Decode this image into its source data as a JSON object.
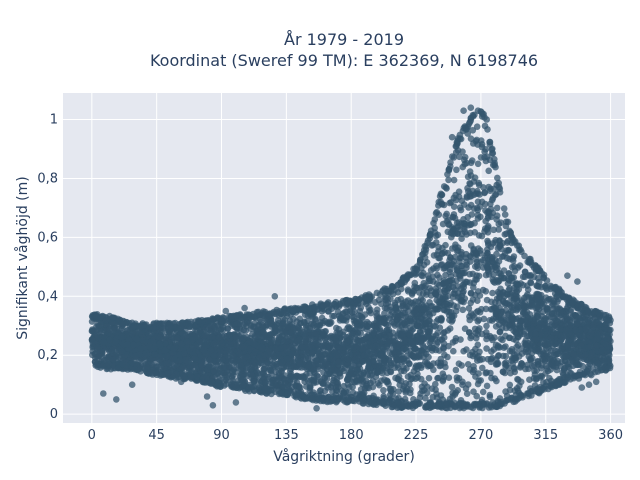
{
  "chart_data": {
    "type": "scatter",
    "title": [
      "År 1979 - 2019",
      "Koordinat (Sweref 99 TM): E 362369, N 6198746"
    ],
    "xlabel": "Vågriktning (grader)",
    "ylabel": "Signifikant våghöjd (m)",
    "xlim": [
      -20,
      370
    ],
    "ylim": [
      -0.03,
      1.09
    ],
    "xticks": [
      0,
      45,
      90,
      135,
      180,
      225,
      270,
      315,
      360
    ],
    "xtick_labels": [
      "0",
      "45",
      "90",
      "135",
      "180",
      "225",
      "270",
      "315",
      "360"
    ],
    "yticks": [
      0,
      0.2,
      0.4,
      0.6,
      0.8,
      1
    ],
    "ytick_labels": [
      "0",
      "0,2",
      "0,4",
      "0,6",
      "0,8",
      "1"
    ],
    "grid": true,
    "marker_color": "#34566e",
    "background_color": "#e5e8f0",
    "series_envelope": {
      "x": [
        0,
        15,
        30,
        45,
        60,
        75,
        90,
        105,
        120,
        135,
        150,
        165,
        180,
        195,
        210,
        225,
        235,
        245,
        255,
        262,
        268,
        272,
        278,
        285,
        292,
        300,
        315,
        330,
        345,
        360
      ],
      "y_low": [
        0.16,
        0.15,
        0.15,
        0.13,
        0.12,
        0.11,
        0.09,
        0.08,
        0.07,
        0.06,
        0.05,
        0.04,
        0.04,
        0.03,
        0.02,
        0.02,
        0.02,
        0.02,
        0.02,
        0.02,
        0.02,
        0.02,
        0.02,
        0.03,
        0.04,
        0.05,
        0.08,
        0.11,
        0.13,
        0.15
      ],
      "y_high": [
        0.35,
        0.33,
        0.31,
        0.31,
        0.31,
        0.32,
        0.33,
        0.34,
        0.35,
        0.36,
        0.37,
        0.38,
        0.39,
        0.41,
        0.44,
        0.5,
        0.62,
        0.8,
        0.95,
        1.0,
        1.04,
        1.02,
        0.9,
        0.72,
        0.6,
        0.55,
        0.47,
        0.4,
        0.36,
        0.33
      ]
    },
    "outliers": [
      {
        "x": 8,
        "y": 0.07
      },
      {
        "x": 17,
        "y": 0.05
      },
      {
        "x": 28,
        "y": 0.1
      },
      {
        "x": 62,
        "y": 0.11
      },
      {
        "x": 80,
        "y": 0.06
      },
      {
        "x": 84,
        "y": 0.03
      },
      {
        "x": 93,
        "y": 0.35
      },
      {
        "x": 100,
        "y": 0.04
      },
      {
        "x": 106,
        "y": 0.36
      },
      {
        "x": 127,
        "y": 0.4
      },
      {
        "x": 156,
        "y": 0.02
      },
      {
        "x": 250,
        "y": 0.94
      },
      {
        "x": 258,
        "y": 1.03
      },
      {
        "x": 263,
        "y": 1.04
      },
      {
        "x": 268,
        "y": 1.03
      },
      {
        "x": 274,
        "y": 1.0
      },
      {
        "x": 330,
        "y": 0.47
      },
      {
        "x": 337,
        "y": 0.45
      },
      {
        "x": 340,
        "y": 0.09
      },
      {
        "x": 345,
        "y": 0.1
      },
      {
        "x": 350,
        "y": 0.11
      }
    ]
  }
}
